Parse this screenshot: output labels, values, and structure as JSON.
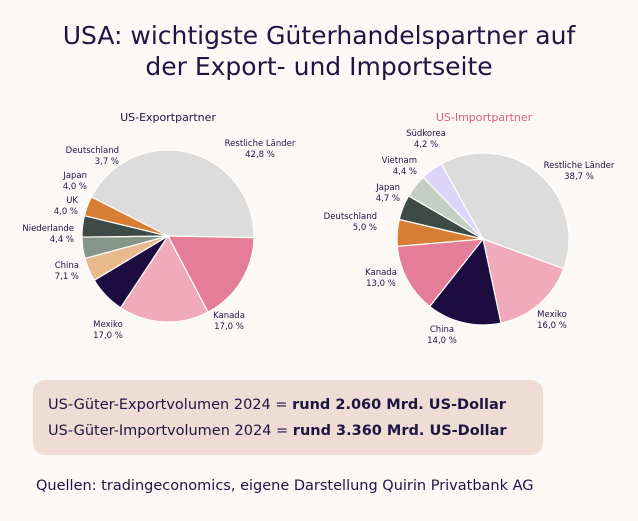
{
  "title_line1": "USA: wichtigste Güterhandelspartner auf",
  "title_line2": "der Export- und Importseite",
  "chart_data": [
    {
      "type": "pie",
      "title": "US-Exportpartner",
      "title_color": "#1c1641",
      "slices": [
        {
          "label": "Restliche Länder",
          "value": 42.8,
          "value_text": "42,8 %",
          "color": "#dcdcdc"
        },
        {
          "label": "Kanada",
          "value": 17.0,
          "value_text": "17,0 %",
          "color": "#e67d98"
        },
        {
          "label": "Mexiko",
          "value": 17.0,
          "value_text": "17,0 %",
          "color": "#f0aabb"
        },
        {
          "label": "China",
          "value": 7.1,
          "value_text": "7,1 %",
          "color": "#1c0c40"
        },
        {
          "label": "Niederlande",
          "value": 4.4,
          "value_text": "4,4 %",
          "color": "#e8b98a"
        },
        {
          "label": "UK",
          "value": 4.0,
          "value_text": "4,0 %",
          "color": "#84958a"
        },
        {
          "label": "Japan",
          "value": 4.0,
          "value_text": "4,0 %",
          "color": "#3d4a45"
        },
        {
          "label": "Deutschland",
          "value": 3.7,
          "value_text": "3,7 %",
          "color": "#d87e34"
        }
      ]
    },
    {
      "type": "pie",
      "title": "US-Importpartner",
      "title_color": "#e0627e",
      "slices": [
        {
          "label": "Restliche Länder",
          "value": 38.7,
          "value_text": "38,7 %",
          "color": "#dcdcdc"
        },
        {
          "label": "Mexiko",
          "value": 16.0,
          "value_text": "16,0 %",
          "color": "#f0aabb"
        },
        {
          "label": "China",
          "value": 14.0,
          "value_text": "14,0 %",
          "color": "#1c0c40"
        },
        {
          "label": "Kanada",
          "value": 13.0,
          "value_text": "13,0 %",
          "color": "#e67d98"
        },
        {
          "label": "Deutschland",
          "value": 5.0,
          "value_text": "5,0 %",
          "color": "#d87e34"
        },
        {
          "label": "Japan",
          "value": 4.7,
          "value_text": "4,7 %",
          "color": "#3d4a45"
        },
        {
          "label": "Vietnam",
          "value": 4.4,
          "value_text": "4,4 %",
          "color": "#c5cdc5"
        },
        {
          "label": "Südkorea",
          "value": 4.2,
          "value_text": "4,2 %",
          "color": "#dcd5f8"
        }
      ]
    }
  ],
  "summary": {
    "export_prefix": "US-Güter-Exportvolumen 2024 = ",
    "export_value": "rund 2.060 Mrd. US-Dollar",
    "import_prefix": "US-Güter-Importvolumen 2024 = ",
    "import_value": "rund 3.360 Mrd. US-Dollar"
  },
  "source": "Quellen: tradingeconomics, eigene Darstellung Quirin Privatbank AG"
}
